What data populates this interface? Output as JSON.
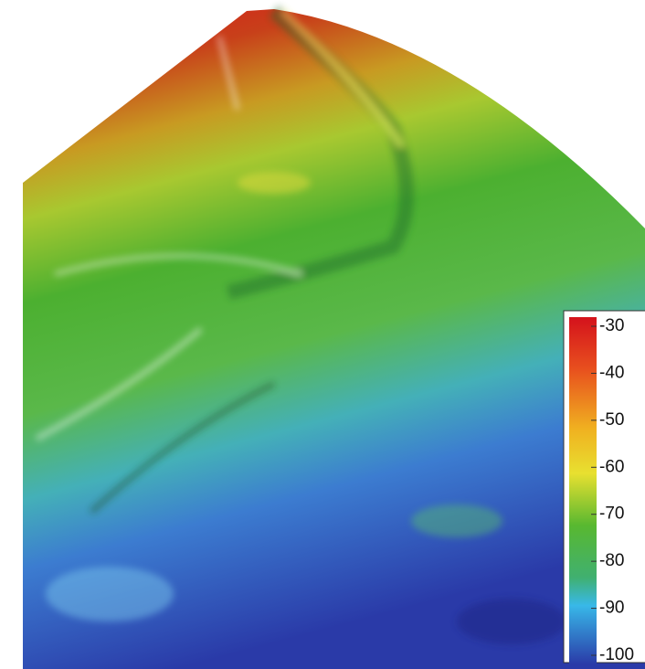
{
  "colorbar": {
    "range": [
      -100,
      -30
    ],
    "ticks": [
      -30,
      -40,
      -50,
      -60,
      -70,
      -80,
      -90,
      -100
    ]
  }
}
